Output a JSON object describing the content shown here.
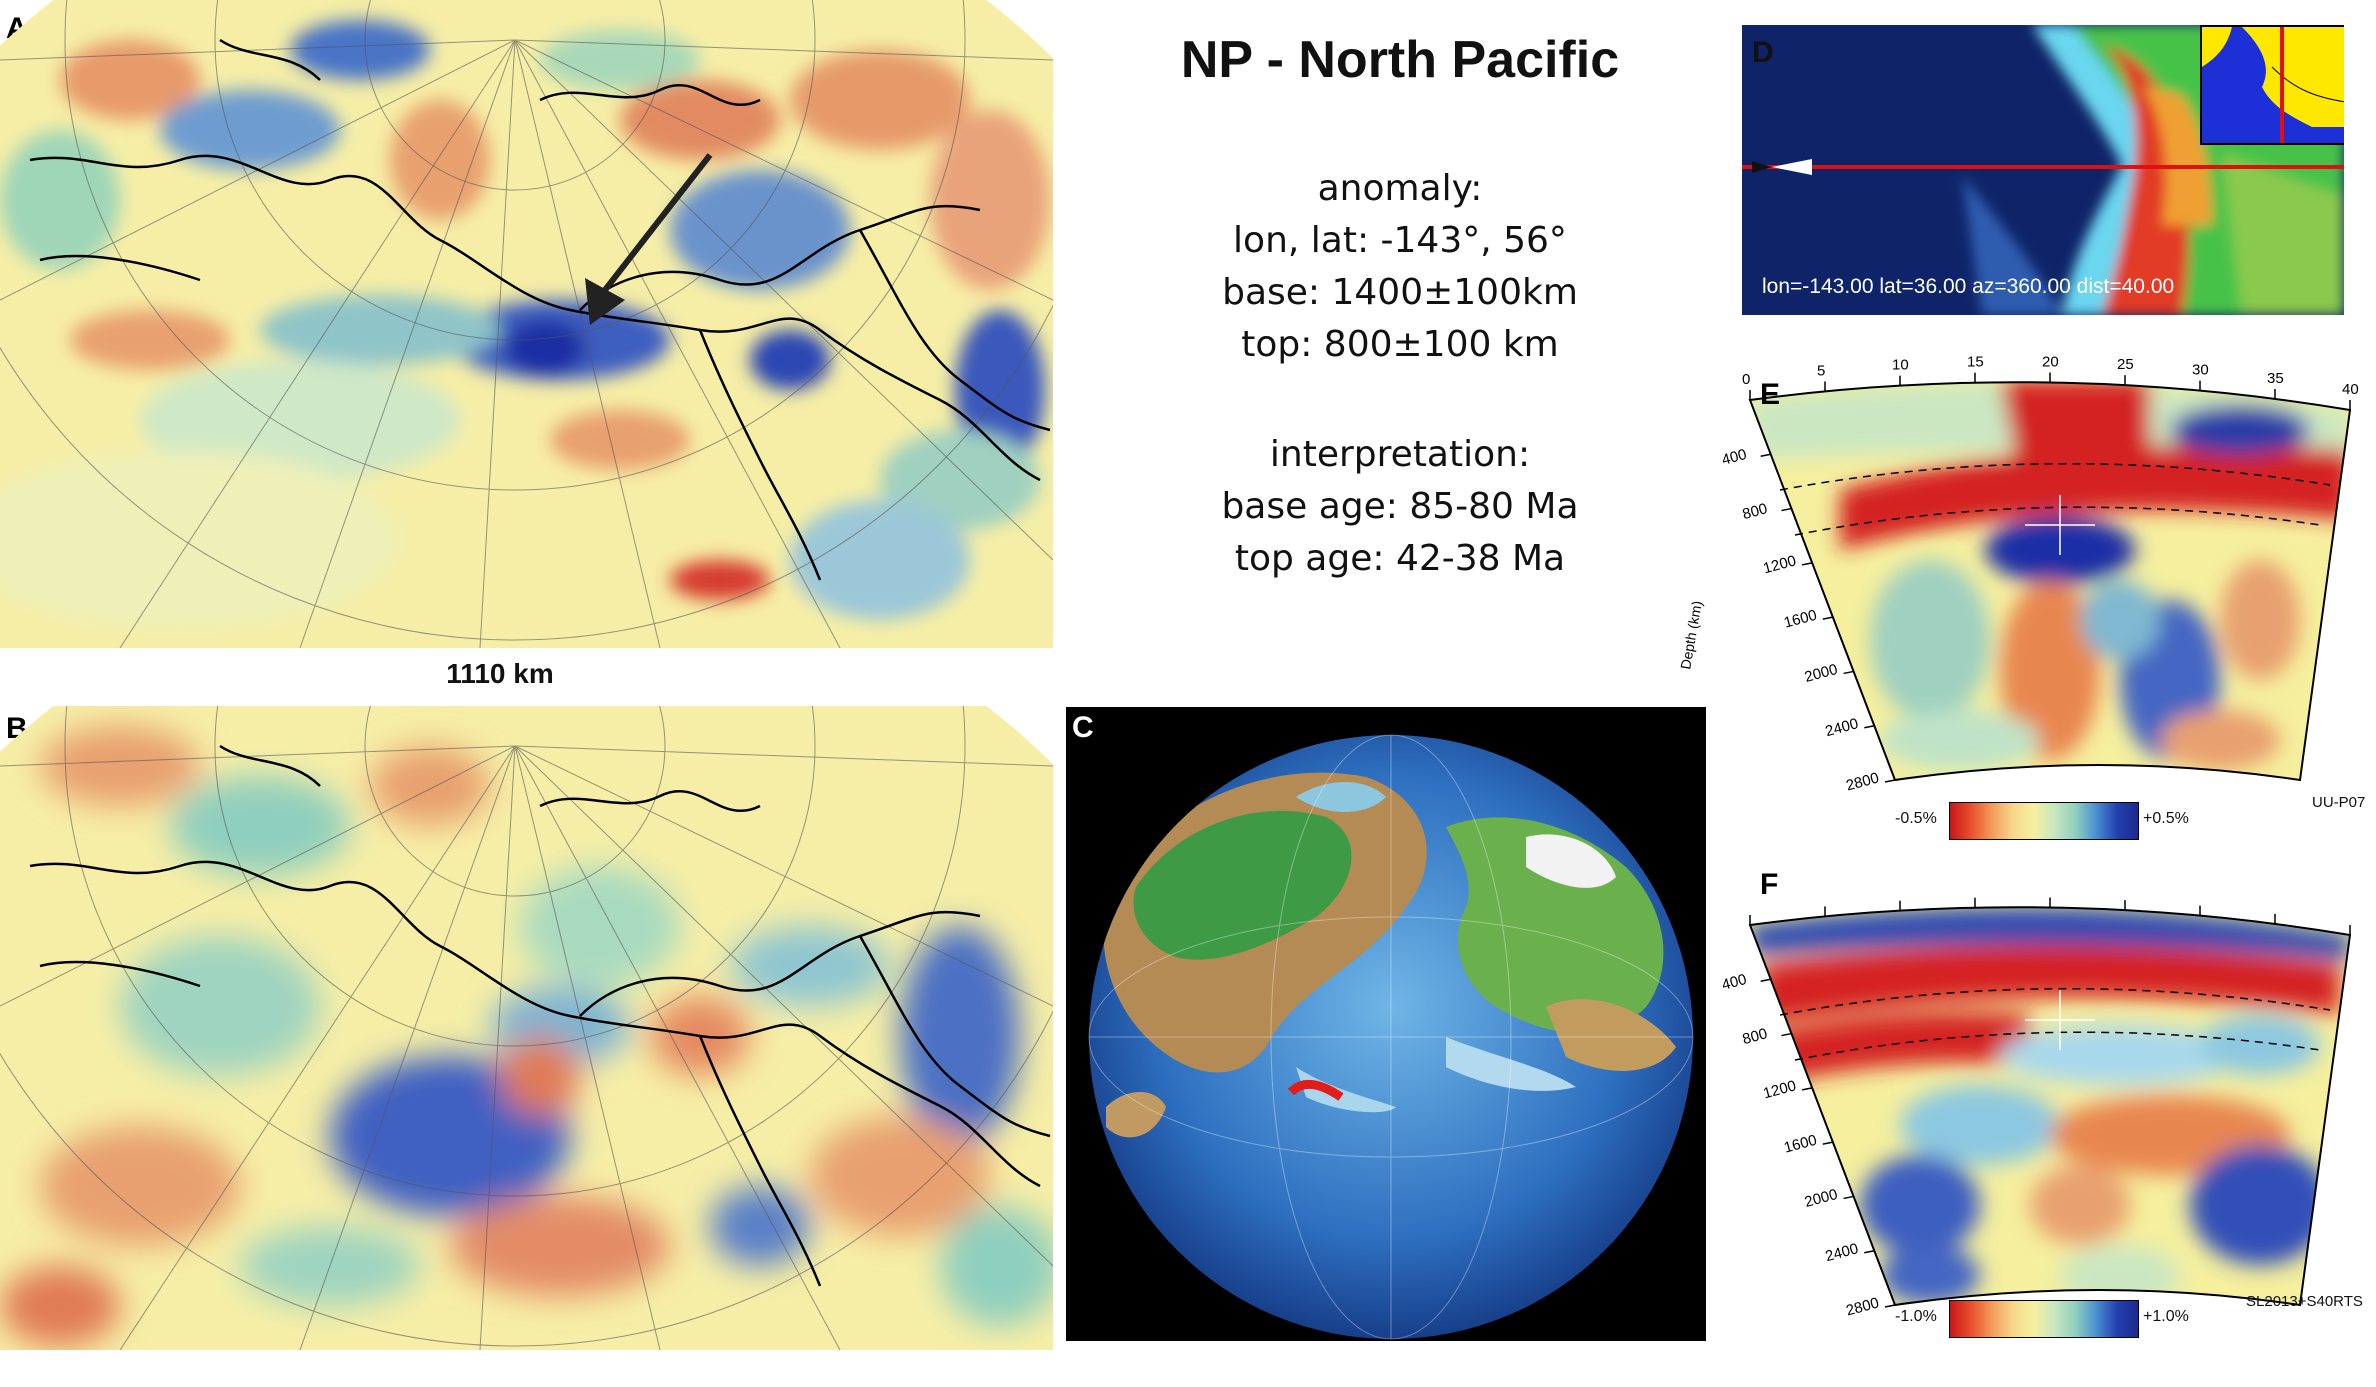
{
  "title": "NP - North Pacific",
  "anomaly": {
    "heading": "anomaly:",
    "lonlat": "lon, lat: -143°, 56°",
    "base": "base: 1400±100km",
    "top": "top: 800±100 km"
  },
  "interpretation": {
    "heading": "interpretation:",
    "base_age": "base age: 85-80 Ma",
    "top_age": "top age: 42-38 Ma"
  },
  "depth_label": "1110 km",
  "panels": {
    "A": "A",
    "B": "B",
    "C": "C",
    "D": "D",
    "E": "E",
    "F": "F"
  },
  "profile": {
    "readout": "lon=-143.00 lat=36.00 az=360.00 dist=40.00",
    "distance_ticks": [
      "0",
      "5",
      "10",
      "15",
      "20",
      "25",
      "30",
      "35",
      "40"
    ],
    "depth_ticks": [
      "400",
      "800",
      "1200",
      "1600",
      "2000",
      "2400",
      "2800"
    ],
    "depth_axis_label": "Depth (km)"
  },
  "section_E": {
    "colorbar_min": "-0.5%",
    "colorbar_max": "+0.5%",
    "model": "UU-P07"
  },
  "section_F": {
    "colorbar_min": "-1.0%",
    "colorbar_max": "+1.0%",
    "model": "SL2013+S40RTS"
  },
  "colors": {
    "fast": "#1f3fa8",
    "slow": "#d42020",
    "neutral": "#f6f1a6",
    "ocean_light": "#c9e9c6"
  }
}
